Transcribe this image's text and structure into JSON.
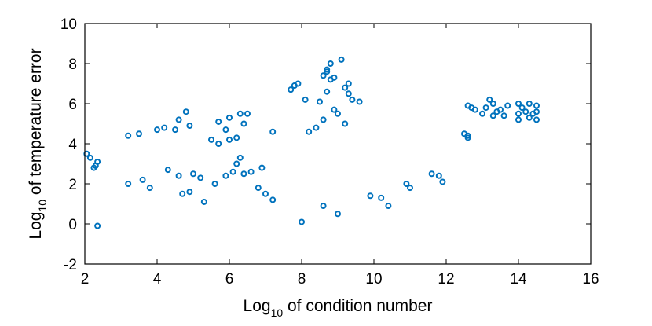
{
  "chart_data": {
    "type": "scatter",
    "title": "",
    "xlabel": {
      "prefix": "Log",
      "sub": "10",
      "suffix": " of condition number"
    },
    "ylabel": {
      "prefix": "Log",
      "sub": "10",
      "suffix": " of temperature error"
    },
    "xlim": [
      2,
      16
    ],
    "ylim": [
      -2,
      10
    ],
    "xticks": [
      2,
      4,
      6,
      8,
      10,
      12,
      14,
      16
    ],
    "yticks": [
      -2,
      0,
      2,
      4,
      6,
      8,
      10
    ],
    "grid": false,
    "marker": "open-circle",
    "color": "#0072BD",
    "series": [
      {
        "points": [
          [
            2.05,
            3.5
          ],
          [
            2.15,
            3.3
          ],
          [
            2.3,
            2.9
          ],
          [
            2.35,
            3.1
          ],
          [
            2.25,
            2.8
          ],
          [
            2.35,
            -0.1
          ],
          [
            8.8,
            8.0
          ],
          [
            9.1,
            8.2
          ],
          [
            8.7,
            7.7
          ],
          [
            8.6,
            7.4
          ],
          [
            8.7,
            7.6
          ],
          [
            8.8,
            7.2
          ],
          [
            8.9,
            7.3
          ],
          [
            7.8,
            6.9
          ],
          [
            7.7,
            6.7
          ],
          [
            7.9,
            7.0
          ],
          [
            9.3,
            7.0
          ],
          [
            9.2,
            6.8
          ],
          [
            9.3,
            6.5
          ],
          [
            9.4,
            6.2
          ],
          [
            9.6,
            6.1
          ],
          [
            8.1,
            6.2
          ],
          [
            8.5,
            6.1
          ],
          [
            8.7,
            6.6
          ],
          [
            8.9,
            5.7
          ],
          [
            9.0,
            5.5
          ],
          [
            8.6,
            5.2
          ],
          [
            9.2,
            5.0
          ],
          [
            8.4,
            4.8
          ],
          [
            8.2,
            4.6
          ],
          [
            4.8,
            5.6
          ],
          [
            6.3,
            5.5
          ],
          [
            6.5,
            5.5
          ],
          [
            6.0,
            5.3
          ],
          [
            5.7,
            5.1
          ],
          [
            6.4,
            5.0
          ],
          [
            4.6,
            5.2
          ],
          [
            4.2,
            4.8
          ],
          [
            4.5,
            4.7
          ],
          [
            4.0,
            4.7
          ],
          [
            4.9,
            4.9
          ],
          [
            3.2,
            4.4
          ],
          [
            3.5,
            4.5
          ],
          [
            5.9,
            4.7
          ],
          [
            6.0,
            4.2
          ],
          [
            6.2,
            4.3
          ],
          [
            7.2,
            4.6
          ],
          [
            5.5,
            4.2
          ],
          [
            5.7,
            4.0
          ],
          [
            6.2,
            3.0
          ],
          [
            6.4,
            2.5
          ],
          [
            6.1,
            2.6
          ],
          [
            5.9,
            2.4
          ],
          [
            6.3,
            3.3
          ],
          [
            4.3,
            2.7
          ],
          [
            4.6,
            2.4
          ],
          [
            5.0,
            2.5
          ],
          [
            5.2,
            2.3
          ],
          [
            5.6,
            2.0
          ],
          [
            3.6,
            2.2
          ],
          [
            3.2,
            2.0
          ],
          [
            3.8,
            1.8
          ],
          [
            4.7,
            1.5
          ],
          [
            4.9,
            1.6
          ],
          [
            5.3,
            1.1
          ],
          [
            6.8,
            1.8
          ],
          [
            7.0,
            1.5
          ],
          [
            7.2,
            1.2
          ],
          [
            6.6,
            2.6
          ],
          [
            6.9,
            2.8
          ],
          [
            13.2,
            6.2
          ],
          [
            13.3,
            6.0
          ],
          [
            13.1,
            5.8
          ],
          [
            13.4,
            5.6
          ],
          [
            13.3,
            5.4
          ],
          [
            13.5,
            5.7
          ],
          [
            13.7,
            5.9
          ],
          [
            13.0,
            5.5
          ],
          [
            13.6,
            5.4
          ],
          [
            14.0,
            6.0
          ],
          [
            14.1,
            5.8
          ],
          [
            14.0,
            5.5
          ],
          [
            14.0,
            5.2
          ],
          [
            14.3,
            6.0
          ],
          [
            14.2,
            5.6
          ],
          [
            14.3,
            5.3
          ],
          [
            14.5,
            5.9
          ],
          [
            14.5,
            5.6
          ],
          [
            14.5,
            5.2
          ],
          [
            14.4,
            5.5
          ],
          [
            12.7,
            5.8
          ],
          [
            12.8,
            5.7
          ],
          [
            12.6,
            5.9
          ],
          [
            12.6,
            4.3
          ],
          [
            12.5,
            4.5
          ],
          [
            12.6,
            4.4
          ],
          [
            11.8,
            2.4
          ],
          [
            11.9,
            2.1
          ],
          [
            11.6,
            2.5
          ],
          [
            10.9,
            2.0
          ],
          [
            11.0,
            1.8
          ],
          [
            10.4,
            0.9
          ],
          [
            10.2,
            1.3
          ],
          [
            9.9,
            1.4
          ],
          [
            9.0,
            0.5
          ],
          [
            8.6,
            0.9
          ],
          [
            8.0,
            0.1
          ]
        ]
      }
    ]
  }
}
